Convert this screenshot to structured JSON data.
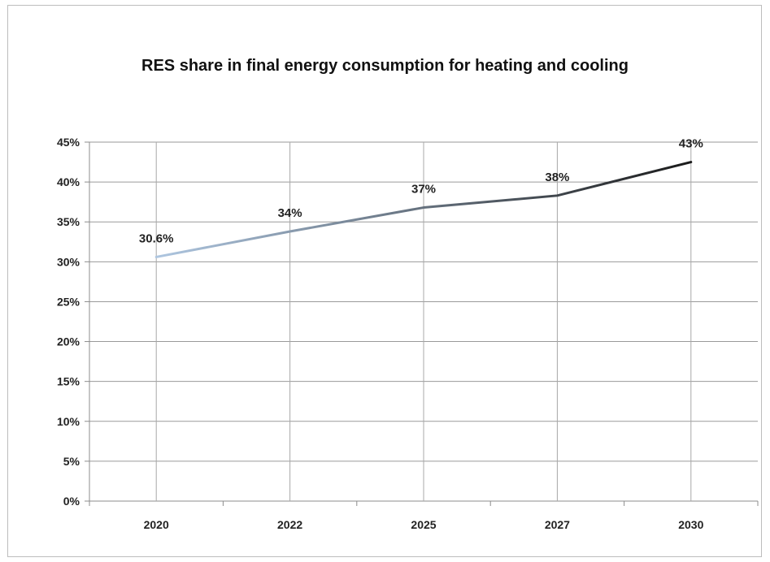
{
  "chart_data": {
    "type": "line",
    "title": "RES share in final energy consumption for heating and cooling",
    "xlabel": "",
    "ylabel": "",
    "categories": [
      "2020",
      "2022",
      "2025",
      "2027",
      "2030"
    ],
    "series": [
      {
        "values": [
          30.6,
          33.8,
          36.8,
          38.3,
          42.5
        ],
        "data_labels": [
          "30.6%",
          "34%",
          "37%",
          "38%",
          "43%"
        ],
        "color_start": "#aec6e0",
        "color_end": "#1a1a1a"
      }
    ],
    "ylim": [
      0,
      45
    ],
    "yticks": [
      "0%",
      "5%",
      "10%",
      "15%",
      "20%",
      "25%",
      "30%",
      "35%",
      "40%",
      "45%"
    ],
    "grid": true,
    "legend": "none"
  }
}
